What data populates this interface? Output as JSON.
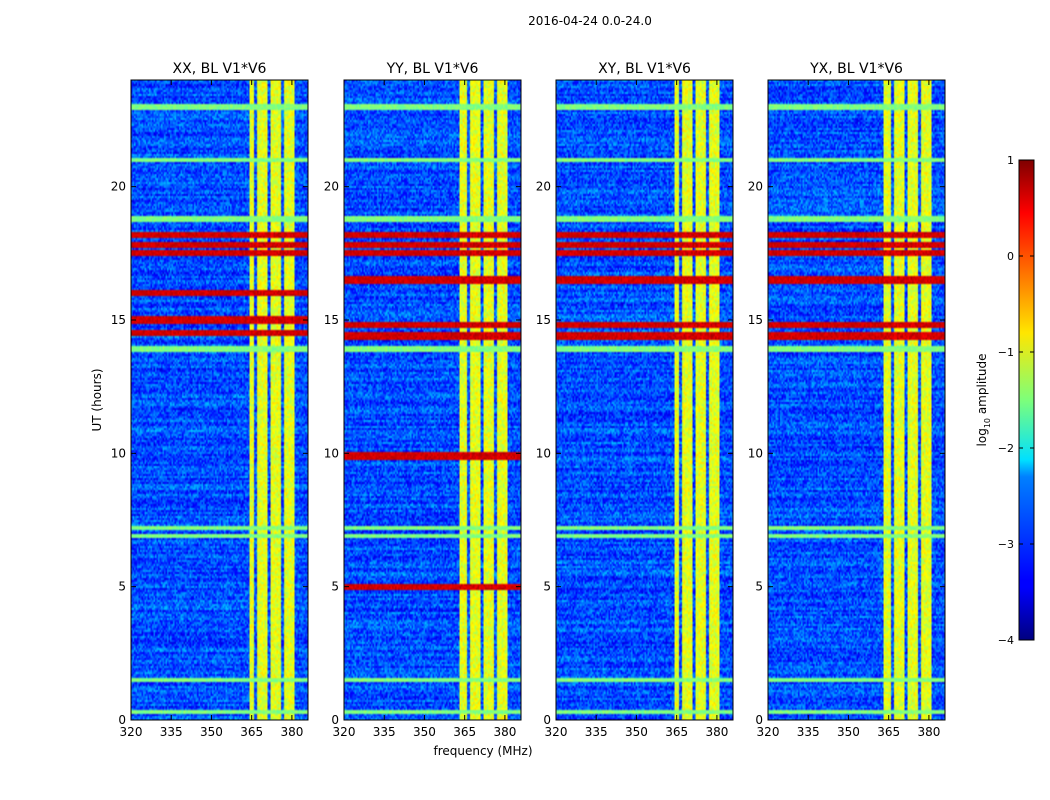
{
  "figure": {
    "suptitle": "2016-04-24 0.0-24.0",
    "xlabel": "frequency (MHz)",
    "ylabel": "UT (hours)",
    "colorbar_label_main": "log",
    "colorbar_label_sub": "10",
    "colorbar_label_tail": " amplitude",
    "colorbar_ticks": [
      1,
      0,
      -1,
      -2,
      -3,
      -4
    ],
    "colorbar_tick_labels": [
      "1",
      "0",
      "−1",
      "−2",
      "−3",
      "−4"
    ]
  },
  "chart_data": [
    {
      "type": "heatmap",
      "title": "XX, BL V1*V6",
      "xlim": [
        320,
        386
      ],
      "ylim": [
        0,
        24
      ],
      "xticks": [
        320,
        335,
        350,
        365,
        380
      ],
      "yticks": [
        0,
        5,
        10,
        15,
        20
      ],
      "xticklabels": [
        "320",
        "335",
        "350",
        "365",
        "380"
      ],
      "yticklabels": [
        "0",
        "5",
        "10",
        "15",
        "20"
      ],
      "zlim": [
        -4,
        1
      ],
      "colormap": "jet",
      "background_level": -3.0,
      "bright_bands_mhz": [
        [
          364,
          366
        ],
        [
          367,
          371
        ],
        [
          372,
          376
        ],
        [
          377,
          381
        ]
      ],
      "bright_band_level": -1.0,
      "hot_rows_hours": [
        17.5,
        17.8,
        18.2,
        16.0,
        15.0,
        14.5
      ],
      "hot_row_level": 0.6,
      "flag_rows_hours": [
        0.3,
        18.8,
        1.5,
        6.9,
        7.2,
        13.9,
        21.0,
        23.0
      ],
      "flag_row_level": -1.5
    },
    {
      "type": "heatmap",
      "title": "YY, BL V1*V6",
      "xlim": [
        320,
        386
      ],
      "ylim": [
        0,
        24
      ],
      "xticks": [
        320,
        335,
        350,
        365,
        380
      ],
      "yticks": [
        0,
        5,
        10,
        15,
        20
      ],
      "xticklabels": [
        "320",
        "335",
        "350",
        "365",
        "380"
      ],
      "yticklabels": [
        "0",
        "5",
        "10",
        "15",
        "20"
      ],
      "zlim": [
        -4,
        1
      ],
      "colormap": "jet",
      "background_level": -3.0,
      "bright_bands_mhz": [
        [
          363,
          366
        ],
        [
          367,
          371
        ],
        [
          372,
          376
        ],
        [
          377,
          381
        ]
      ],
      "bright_band_level": -1.0,
      "hot_rows_hours": [
        17.5,
        17.8,
        18.2,
        16.5,
        14.8,
        14.4,
        9.9,
        5.0
      ],
      "hot_row_level": 0.6,
      "flag_rows_hours": [
        0.3,
        18.8,
        1.5,
        6.9,
        7.2,
        13.9,
        21.0,
        23.0
      ],
      "flag_row_level": -1.5
    },
    {
      "type": "heatmap",
      "title": "XY, BL V1*V6",
      "xlim": [
        320,
        386
      ],
      "ylim": [
        0,
        24
      ],
      "xticks": [
        320,
        335,
        350,
        365,
        380
      ],
      "yticks": [
        0,
        5,
        10,
        15,
        20
      ],
      "xticklabels": [
        "320",
        "335",
        "350",
        "365",
        "380"
      ],
      "yticklabels": [
        "0",
        "5",
        "10",
        "15",
        "20"
      ],
      "zlim": [
        -4,
        1
      ],
      "colormap": "jet",
      "background_level": -3.0,
      "bright_bands_mhz": [
        [
          364,
          366
        ],
        [
          367,
          371
        ],
        [
          372,
          376
        ],
        [
          377,
          381
        ]
      ],
      "bright_band_level": -1.0,
      "hot_rows_hours": [
        17.5,
        17.8,
        18.2,
        16.5,
        14.8,
        14.4
      ],
      "hot_row_level": 0.6,
      "flag_rows_hours": [
        0.3,
        18.8,
        1.5,
        6.9,
        7.2,
        13.9,
        21.0,
        23.0
      ],
      "flag_row_level": -1.5
    },
    {
      "type": "heatmap",
      "title": "YX, BL V1*V6",
      "xlim": [
        320,
        386
      ],
      "ylim": [
        0,
        24
      ],
      "xticks": [
        320,
        335,
        350,
        365,
        380
      ],
      "yticks": [
        0,
        5,
        10,
        15,
        20
      ],
      "xticklabels": [
        "320",
        "335",
        "350",
        "365",
        "380"
      ],
      "yticklabels": [
        "0",
        "5",
        "10",
        "15",
        "20"
      ],
      "zlim": [
        -4,
        1
      ],
      "colormap": "jet",
      "background_level": -3.0,
      "bright_bands_mhz": [
        [
          363,
          366
        ],
        [
          367,
          371
        ],
        [
          372,
          376
        ],
        [
          377,
          381
        ]
      ],
      "bright_band_level": -1.0,
      "hot_rows_hours": [
        17.5,
        17.8,
        18.2,
        16.5,
        14.8,
        14.4
      ],
      "hot_row_level": 0.6,
      "flag_rows_hours": [
        0.3,
        18.8,
        1.5,
        6.9,
        7.2,
        13.9,
        21.0,
        23.0
      ],
      "flag_row_level": -1.5
    }
  ]
}
